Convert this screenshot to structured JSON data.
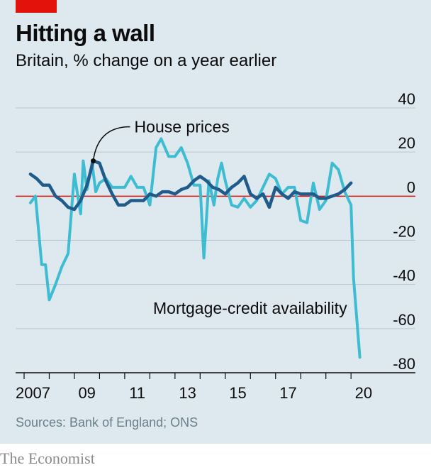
{
  "header": {
    "title": "Hitting a wall",
    "subtitle": "Britain, % change on a year earlier"
  },
  "footer": {
    "source": "Sources: Bank of England; ONS",
    "brand": "The Economist"
  },
  "colors": {
    "background": "#dde9ef",
    "accent": "#e3120b",
    "house_prices": "#1f5c8b",
    "mortgage_credit": "#3ebcd2",
    "grid": "#b7c6ce",
    "zero_line": "#e3120b"
  },
  "chart_data": {
    "type": "line",
    "title": "Hitting a wall",
    "subtitle": "Britain, % change on a year earlier",
    "xlim": [
      2007.0,
      2020.7
    ],
    "ylim": [
      -80,
      40
    ],
    "y_ticks": [
      40,
      20,
      0,
      -20,
      -40,
      -60,
      -80
    ],
    "y_tick_labels": [
      "40",
      "20",
      "0",
      "-20",
      "-40",
      "-60",
      "-80"
    ],
    "y_axis_side": "right",
    "x_tick_labels": [
      {
        "value": 2007,
        "label": "2007"
      },
      {
        "value": 2009,
        "label": "09"
      },
      {
        "value": 2011,
        "label": "11"
      },
      {
        "value": 2013,
        "label": "13"
      },
      {
        "value": 2015,
        "label": "15"
      },
      {
        "value": 2017,
        "label": "17"
      },
      {
        "value": 2020,
        "label": "20"
      }
    ],
    "grid": true,
    "annotations": [
      {
        "text": "House prices",
        "series": "House prices"
      },
      {
        "text": "Mortgage-credit availability",
        "series": "Mortgage-credit availability"
      }
    ],
    "series": [
      {
        "name": "House prices",
        "color": "#1f5c8b",
        "x": [
          2007.25,
          2007.5,
          2007.75,
          2008.0,
          2008.25,
          2008.5,
          2008.75,
          2009.0,
          2009.25,
          2009.5,
          2009.75,
          2010.0,
          2010.25,
          2010.5,
          2010.75,
          2011.0,
          2011.25,
          2011.5,
          2011.75,
          2012.0,
          2012.25,
          2012.5,
          2012.75,
          2013.0,
          2013.25,
          2013.5,
          2013.75,
          2014.0,
          2014.25,
          2014.5,
          2014.75,
          2015.0,
          2015.25,
          2015.5,
          2015.75,
          2016.0,
          2016.25,
          2016.5,
          2016.75,
          2017.0,
          2017.25,
          2017.5,
          2017.75,
          2018.0,
          2018.25,
          2018.5,
          2018.75,
          2019.0,
          2019.25,
          2019.5,
          2019.75,
          2020.0
        ],
        "y": [
          10,
          8,
          5,
          5,
          0,
          -2,
          -5,
          -6,
          -2,
          5,
          16,
          15,
          7,
          1,
          -4,
          -4,
          -2,
          -2,
          -2,
          1,
          0,
          2,
          2,
          1,
          3,
          4,
          7,
          9,
          7,
          4,
          3,
          1,
          4,
          6,
          9,
          1,
          -1,
          1,
          -5,
          4,
          1,
          -1,
          2,
          1,
          1,
          1,
          -1,
          -1,
          0,
          1,
          3,
          6
        ]
      },
      {
        "name": "Mortgage-credit availability",
        "color": "#3ebcd2",
        "x": [
          2007.25,
          2007.45,
          2007.7,
          2007.85,
          2008.0,
          2008.25,
          2008.5,
          2008.75,
          2009.0,
          2009.25,
          2009.35,
          2009.5,
          2009.7,
          2009.85,
          2010.0,
          2010.25,
          2010.5,
          2010.75,
          2011.0,
          2011.25,
          2011.5,
          2011.75,
          2012.0,
          2012.25,
          2012.45,
          2012.75,
          2013.0,
          2013.25,
          2013.5,
          2013.75,
          2014.0,
          2014.15,
          2014.35,
          2014.55,
          2014.7,
          2014.85,
          2015.0,
          2015.25,
          2015.5,
          2015.75,
          2016.0,
          2016.25,
          2016.5,
          2016.75,
          2017.0,
          2017.25,
          2017.5,
          2017.75,
          2018.0,
          2018.25,
          2018.5,
          2018.75,
          2019.0,
          2019.25,
          2019.5,
          2019.75,
          2020.0,
          2020.1,
          2020.35
        ],
        "y": [
          -3,
          0,
          -31,
          -31,
          -47,
          -40,
          -32,
          -26,
          10,
          -8,
          16,
          3,
          15,
          2,
          6,
          8,
          4,
          4,
          4,
          9,
          4,
          4,
          -4,
          22,
          26,
          18,
          18,
          22,
          15,
          5,
          5,
          -28,
          7,
          -4,
          8,
          15,
          7,
          -4,
          -5,
          -1,
          -5,
          -2,
          4,
          10,
          8,
          1,
          4,
          4,
          -11,
          -12,
          6,
          -6,
          -2,
          15,
          12,
          2,
          -4,
          -37,
          -73
        ]
      }
    ]
  }
}
